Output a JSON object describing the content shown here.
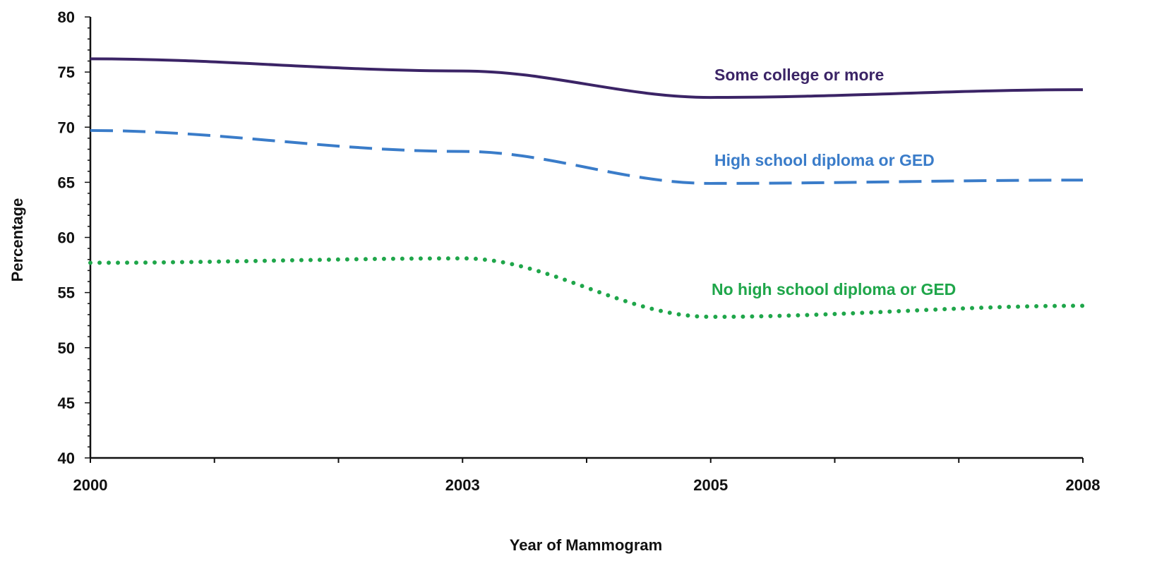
{
  "chart_data": {
    "type": "line",
    "xlabel": "Year of Mammogram",
    "ylabel": "Percentage",
    "x": [
      2000,
      2003,
      2005,
      2008
    ],
    "xticks": [
      "2000",
      "2003",
      "2005",
      "2008"
    ],
    "ylim": [
      40,
      80
    ],
    "yticks": [
      40,
      45,
      50,
      55,
      60,
      65,
      70,
      75,
      80
    ],
    "grid": false,
    "series": [
      {
        "name": "Some college or more",
        "values": [
          76.2,
          75.1,
          72.7,
          73.4
        ],
        "color": "#3b2466",
        "style": "solid"
      },
      {
        "name": "High school diploma or GED",
        "values": [
          69.7,
          67.8,
          64.9,
          65.2
        ],
        "color": "#3a7cc9",
        "style": "dashed"
      },
      {
        "name": "No high school diploma or GED",
        "values": [
          57.7,
          58.1,
          52.8,
          53.8
        ],
        "color": "#1fa64a",
        "style": "dotted"
      }
    ]
  }
}
